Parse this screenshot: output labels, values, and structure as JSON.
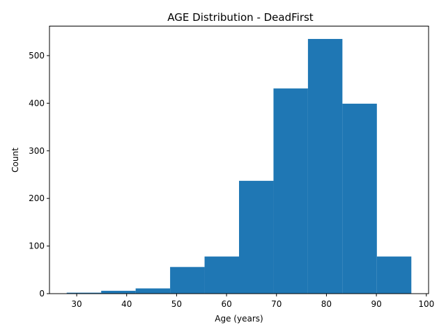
{
  "chart_data": {
    "type": "bar",
    "title": "AGE Distribution - DeadFirst",
    "xlabel": "Age (years)",
    "ylabel": "Count",
    "bin_edges": [
      28,
      34.9,
      41.8,
      48.7,
      55.6,
      62.5,
      69.4,
      76.3,
      83.2,
      90.1,
      97
    ],
    "values": [
      2,
      6,
      11,
      56,
      78,
      237,
      431,
      535,
      399,
      78
    ],
    "xlim": [
      24.55,
      100.45
    ],
    "ylim": [
      0,
      562
    ],
    "xticks": [
      30,
      40,
      50,
      60,
      70,
      80,
      90,
      100
    ],
    "yticks": [
      0,
      100,
      200,
      300,
      400,
      500
    ],
    "bar_color": "#1f77b4",
    "grid": false
  }
}
